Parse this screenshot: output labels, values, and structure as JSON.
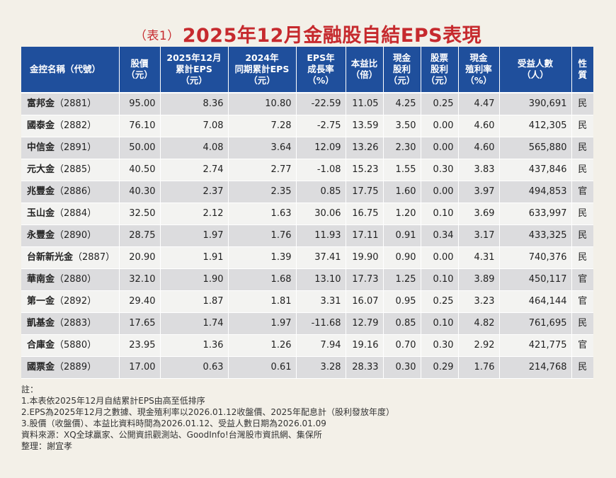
{
  "title": {
    "tag": "（表1）",
    "text": "2025年12月金融股自結EPS表現"
  },
  "table": {
    "headers": [
      [
        "金控名稱（代號）"
      ],
      [
        "股價",
        "（元）"
      ],
      [
        "2025年12月",
        "累計EPS",
        "（元）"
      ],
      [
        "2024年",
        "同期累計EPS",
        "（元）"
      ],
      [
        "EPS年",
        "成長率",
        "（%）"
      ],
      [
        "本益比",
        "（倍）"
      ],
      [
        "現金",
        "股利",
        "（元）"
      ],
      [
        "股票",
        "股利",
        "（元）"
      ],
      [
        "現金",
        "殖利率",
        "（%）"
      ],
      [
        "受益人數",
        "（人）"
      ],
      [
        "性",
        "質"
      ]
    ],
    "rows": [
      {
        "name": "富邦金",
        "code": "（2881）",
        "price": "95.00",
        "eps2025": "8.36",
        "eps2024": "10.80",
        "growth": "-22.59",
        "pe": "11.05",
        "cash_div": "4.25",
        "stock_div": "0.25",
        "yield": "4.47",
        "holders": "390,691",
        "type": "民"
      },
      {
        "name": "國泰金",
        "code": "（2882）",
        "price": "76.10",
        "eps2025": "7.08",
        "eps2024": "7.28",
        "growth": "-2.75",
        "pe": "13.59",
        "cash_div": "3.50",
        "stock_div": "0.00",
        "yield": "4.60",
        "holders": "412,305",
        "type": "民"
      },
      {
        "name": "中信金",
        "code": "（2891）",
        "price": "50.00",
        "eps2025": "4.08",
        "eps2024": "3.64",
        "growth": "12.09",
        "pe": "13.26",
        "cash_div": "2.30",
        "stock_div": "0.00",
        "yield": "4.60",
        "holders": "565,880",
        "type": "民"
      },
      {
        "name": "元大金",
        "code": "（2885）",
        "price": "40.50",
        "eps2025": "2.74",
        "eps2024": "2.77",
        "growth": "-1.08",
        "pe": "15.23",
        "cash_div": "1.55",
        "stock_div": "0.30",
        "yield": "3.83",
        "holders": "437,846",
        "type": "民"
      },
      {
        "name": "兆豐金",
        "code": "（2886）",
        "price": "40.30",
        "eps2025": "2.37",
        "eps2024": "2.35",
        "growth": "0.85",
        "pe": "17.75",
        "cash_div": "1.60",
        "stock_div": "0.00",
        "yield": "3.97",
        "holders": "494,853",
        "type": "官"
      },
      {
        "name": "玉山金",
        "code": "（2884）",
        "price": "32.50",
        "eps2025": "2.12",
        "eps2024": "1.63",
        "growth": "30.06",
        "pe": "16.75",
        "cash_div": "1.20",
        "stock_div": "0.10",
        "yield": "3.69",
        "holders": "633,997",
        "type": "民"
      },
      {
        "name": "永豐金",
        "code": "（2890）",
        "price": "28.75",
        "eps2025": "1.97",
        "eps2024": "1.76",
        "growth": "11.93",
        "pe": "17.11",
        "cash_div": "0.91",
        "stock_div": "0.34",
        "yield": "3.17",
        "holders": "433,325",
        "type": "民"
      },
      {
        "name": "台新新光金",
        "code": "（2887）",
        "price": "20.90",
        "eps2025": "1.91",
        "eps2024": "1.39",
        "growth": "37.41",
        "pe": "19.90",
        "cash_div": "0.90",
        "stock_div": "0.00",
        "yield": "4.31",
        "holders": "740,376",
        "type": "民"
      },
      {
        "name": "華南金",
        "code": "（2880）",
        "price": "32.10",
        "eps2025": "1.90",
        "eps2024": "1.68",
        "growth": "13.10",
        "pe": "17.73",
        "cash_div": "1.25",
        "stock_div": "0.10",
        "yield": "3.89",
        "holders": "450,117",
        "type": "官"
      },
      {
        "name": "第一金",
        "code": "（2892）",
        "price": "29.40",
        "eps2025": "1.87",
        "eps2024": "1.81",
        "growth": "3.31",
        "pe": "16.07",
        "cash_div": "0.95",
        "stock_div": "0.25",
        "yield": "3.23",
        "holders": "464,144",
        "type": "官"
      },
      {
        "name": "凱基金",
        "code": "（2883）",
        "price": "17.65",
        "eps2025": "1.74",
        "eps2024": "1.97",
        "growth": "-11.68",
        "pe": "12.79",
        "cash_div": "0.85",
        "stock_div": "0.10",
        "yield": "4.82",
        "holders": "761,695",
        "type": "民"
      },
      {
        "name": "合庫金",
        "code": "（5880）",
        "price": "23.95",
        "eps2025": "1.36",
        "eps2024": "1.26",
        "growth": "7.94",
        "pe": "19.16",
        "cash_div": "0.70",
        "stock_div": "0.30",
        "yield": "2.92",
        "holders": "421,775",
        "type": "官"
      },
      {
        "name": "國票金",
        "code": "（2889）",
        "price": "17.00",
        "eps2025": "0.63",
        "eps2024": "0.61",
        "growth": "3.28",
        "pe": "28.33",
        "cash_div": "0.30",
        "stock_div": "0.29",
        "yield": "1.76",
        "holders": "214,768",
        "type": "民"
      }
    ]
  },
  "notes": [
    "註：",
    "1.本表依2025年12月自結累計EPS由高至低排序",
    "2.EPS為2025年12月之數據、現金殖利率以2026.01.12收盤價、2025年配息計（股利發放年度）",
    "3.股價（收盤價）、本益比資料時間為2026.01.12、受益人數日期為2026.01.09",
    "資料來源：XQ全球贏家、公開資訊觀測站、GoodInfo!台灣股市資訊網、集保所",
    "整理：謝宜孝"
  ],
  "colors": {
    "title": "#c62a2e",
    "header_bg": "#1f4f9c",
    "row_odd": "#dcdcde",
    "row_even": "#f3f3f1",
    "page_bg": "#f3f0e8"
  }
}
